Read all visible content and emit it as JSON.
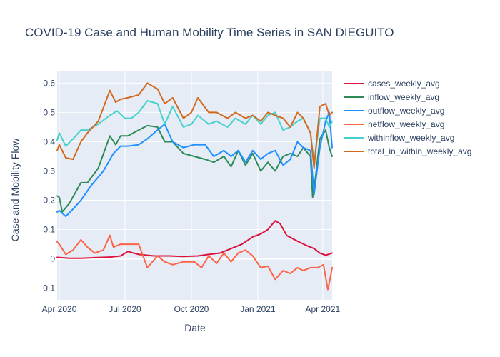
{
  "chart_data": {
    "type": "line",
    "title": "COVID-19 Case and Human Mobility Time Series in SAN DIEGUITO",
    "xlabel": "Date",
    "ylabel": "Case and Mobility Flow",
    "xlim": [
      "2020-03-29",
      "2021-04-14"
    ],
    "ylim": [
      -0.14,
      0.64
    ],
    "xticks": [
      {
        "date": "2020-04-01",
        "label": "Apr 2020"
      },
      {
        "date": "2020-07-01",
        "label": "Jul 2020"
      },
      {
        "date": "2020-10-01",
        "label": "Oct 2020"
      },
      {
        "date": "2021-01-01",
        "label": "Jan 2021"
      },
      {
        "date": "2021-04-01",
        "label": "Apr 2021"
      }
    ],
    "yticks": [
      -0.1,
      0,
      0.1,
      0.2,
      0.3,
      0.4,
      0.5,
      0.6
    ],
    "ytick_labels": [
      "−0.1",
      "0",
      "0.1",
      "0.2",
      "0.3",
      "0.4",
      "0.5",
      "0.6"
    ],
    "grid": true,
    "legend": "top-right, outside plot",
    "series": [
      {
        "name": "cases_weekly_avg",
        "color": "#dc143c",
        "x": [
          "2020-03-29",
          "2020-04-15",
          "2020-05-01",
          "2020-05-20",
          "2020-06-10",
          "2020-06-25",
          "2020-07-05",
          "2020-07-20",
          "2020-08-10",
          "2020-09-01",
          "2020-09-20",
          "2020-10-10",
          "2020-10-25",
          "2020-11-10",
          "2020-11-25",
          "2020-12-10",
          "2020-12-25",
          "2021-01-05",
          "2021-01-15",
          "2021-01-20",
          "2021-01-25",
          "2021-02-01",
          "2021-02-10",
          "2021-02-25",
          "2021-03-10",
          "2021-03-20",
          "2021-03-28",
          "2021-04-05",
          "2021-04-14"
        ],
        "y": [
          0.005,
          0.002,
          0.002,
          0.004,
          0.006,
          0.01,
          0.025,
          0.015,
          0.01,
          0.01,
          0.008,
          0.01,
          0.015,
          0.02,
          0.035,
          0.05,
          0.075,
          0.085,
          0.1,
          0.115,
          0.13,
          0.12,
          0.08,
          0.06,
          0.045,
          0.035,
          0.02,
          0.012,
          0.02
        ]
      },
      {
        "name": "inflow_weekly_avg",
        "color": "#2e8b57",
        "x": [
          "2020-03-29",
          "2020-04-01",
          "2020-04-05",
          "2020-04-15",
          "2020-05-01",
          "2020-05-10",
          "2020-05-25",
          "2020-06-10",
          "2020-06-18",
          "2020-06-25",
          "2020-07-05",
          "2020-07-20",
          "2020-08-01",
          "2020-08-15",
          "2020-08-25",
          "2020-09-05",
          "2020-09-20",
          "2020-10-05",
          "2020-10-20",
          "2020-11-01",
          "2020-11-15",
          "2020-11-25",
          "2020-12-05",
          "2020-12-15",
          "2020-12-25",
          "2021-01-05",
          "2021-01-15",
          "2021-01-25",
          "2021-02-05",
          "2021-02-15",
          "2021-02-25",
          "2021-03-05",
          "2021-03-15",
          "2021-03-18",
          "2021-03-22",
          "2021-03-28",
          "2021-04-05",
          "2021-04-10",
          "2021-04-14"
        ],
        "y": [
          0.215,
          0.21,
          0.16,
          0.19,
          0.26,
          0.26,
          0.31,
          0.42,
          0.39,
          0.42,
          0.42,
          0.44,
          0.455,
          0.45,
          0.4,
          0.4,
          0.36,
          0.35,
          0.34,
          0.33,
          0.35,
          0.315,
          0.37,
          0.32,
          0.36,
          0.3,
          0.33,
          0.3,
          0.35,
          0.36,
          0.35,
          0.38,
          0.35,
          0.21,
          0.28,
          0.41,
          0.44,
          0.38,
          0.35
        ]
      },
      {
        "name": "outflow_weekly_avg",
        "color": "#1e90ff",
        "x": [
          "2020-03-29",
          "2020-04-01",
          "2020-04-10",
          "2020-04-20",
          "2020-05-01",
          "2020-05-15",
          "2020-06-01",
          "2020-06-15",
          "2020-06-25",
          "2020-07-05",
          "2020-07-20",
          "2020-08-01",
          "2020-08-15",
          "2020-08-25",
          "2020-09-05",
          "2020-09-20",
          "2020-10-05",
          "2020-10-20",
          "2020-11-01",
          "2020-11-15",
          "2020-11-25",
          "2020-12-05",
          "2020-12-15",
          "2020-12-25",
          "2021-01-05",
          "2021-01-15",
          "2021-01-25",
          "2021-02-05",
          "2021-02-15",
          "2021-02-25",
          "2021-03-05",
          "2021-03-15",
          "2021-03-20",
          "2021-03-28",
          "2021-04-05",
          "2021-04-10",
          "2021-04-14"
        ],
        "y": [
          0.16,
          0.165,
          0.145,
          0.17,
          0.2,
          0.25,
          0.3,
          0.36,
          0.385,
          0.385,
          0.39,
          0.41,
          0.44,
          0.46,
          0.4,
          0.38,
          0.39,
          0.39,
          0.35,
          0.37,
          0.35,
          0.37,
          0.33,
          0.37,
          0.34,
          0.36,
          0.37,
          0.32,
          0.34,
          0.4,
          0.38,
          0.37,
          0.22,
          0.38,
          0.47,
          0.5,
          0.38
        ]
      },
      {
        "name": "netflow_weekly_avg",
        "color": "#ff6347",
        "x": [
          "2020-03-29",
          "2020-04-01",
          "2020-04-10",
          "2020-04-20",
          "2020-05-01",
          "2020-05-10",
          "2020-05-20",
          "2020-06-01",
          "2020-06-10",
          "2020-06-15",
          "2020-06-25",
          "2020-07-05",
          "2020-07-20",
          "2020-08-01",
          "2020-08-15",
          "2020-08-25",
          "2020-09-05",
          "2020-09-20",
          "2020-10-05",
          "2020-10-15",
          "2020-10-25",
          "2020-11-05",
          "2020-11-15",
          "2020-11-25",
          "2020-12-05",
          "2020-12-15",
          "2020-12-25",
          "2021-01-05",
          "2021-01-15",
          "2021-01-25",
          "2021-02-05",
          "2021-02-15",
          "2021-02-25",
          "2021-03-05",
          "2021-03-15",
          "2021-03-25",
          "2021-04-02",
          "2021-04-08",
          "2021-04-11",
          "2021-04-14"
        ],
        "y": [
          0.058,
          0.05,
          0.015,
          0.03,
          0.065,
          0.04,
          0.02,
          0.03,
          0.08,
          0.04,
          0.05,
          0.05,
          0.05,
          -0.03,
          0.01,
          -0.01,
          -0.02,
          -0.01,
          -0.01,
          -0.03,
          0.01,
          -0.015,
          0.02,
          -0.01,
          0.02,
          0.03,
          0.01,
          -0.03,
          -0.025,
          -0.07,
          -0.04,
          -0.05,
          -0.03,
          -0.04,
          -0.03,
          -0.03,
          -0.02,
          -0.105,
          -0.07,
          -0.03
        ]
      },
      {
        "name": "withinflow_weekly_avg",
        "color": "#48d1cc",
        "x": [
          "2020-03-29",
          "2020-04-01",
          "2020-04-10",
          "2020-04-20",
          "2020-05-01",
          "2020-05-10",
          "2020-05-25",
          "2020-06-10",
          "2020-06-20",
          "2020-07-01",
          "2020-07-10",
          "2020-07-20",
          "2020-08-01",
          "2020-08-15",
          "2020-08-25",
          "2020-09-05",
          "2020-09-20",
          "2020-10-01",
          "2020-10-10",
          "2020-10-25",
          "2020-11-05",
          "2020-11-20",
          "2020-12-01",
          "2020-12-15",
          "2020-12-25",
          "2021-01-05",
          "2021-01-15",
          "2021-01-25",
          "2021-02-05",
          "2021-02-15",
          "2021-02-25",
          "2021-03-05",
          "2021-03-15",
          "2021-03-20",
          "2021-03-28",
          "2021-04-05",
          "2021-04-10",
          "2021-04-14"
        ],
        "y": [
          0.405,
          0.43,
          0.385,
          0.41,
          0.44,
          0.44,
          0.46,
          0.49,
          0.505,
          0.48,
          0.48,
          0.5,
          0.54,
          0.53,
          0.46,
          0.52,
          0.45,
          0.46,
          0.49,
          0.46,
          0.47,
          0.45,
          0.48,
          0.46,
          0.49,
          0.46,
          0.49,
          0.5,
          0.44,
          0.45,
          0.47,
          0.48,
          0.43,
          0.33,
          0.48,
          0.48,
          0.45,
          0.47
        ]
      },
      {
        "name": "total_in_within_weekly_avg",
        "color": "#d2691e",
        "x": [
          "2020-03-29",
          "2020-04-01",
          "2020-04-10",
          "2020-04-20",
          "2020-05-01",
          "2020-05-10",
          "2020-05-25",
          "2020-06-10",
          "2020-06-18",
          "2020-06-25",
          "2020-07-05",
          "2020-07-20",
          "2020-08-01",
          "2020-08-15",
          "2020-08-25",
          "2020-09-05",
          "2020-09-20",
          "2020-10-01",
          "2020-10-10",
          "2020-10-25",
          "2020-11-05",
          "2020-11-20",
          "2020-12-01",
          "2020-12-15",
          "2020-12-25",
          "2021-01-05",
          "2021-01-15",
          "2021-01-25",
          "2021-02-05",
          "2021-02-15",
          "2021-02-25",
          "2021-03-05",
          "2021-03-15",
          "2021-03-20",
          "2021-03-28",
          "2021-04-05",
          "2021-04-10",
          "2021-04-14"
        ],
        "y": [
          0.37,
          0.39,
          0.345,
          0.34,
          0.4,
          0.43,
          0.47,
          0.575,
          0.535,
          0.545,
          0.55,
          0.56,
          0.6,
          0.58,
          0.53,
          0.55,
          0.48,
          0.5,
          0.55,
          0.5,
          0.5,
          0.48,
          0.5,
          0.48,
          0.49,
          0.47,
          0.5,
          0.49,
          0.48,
          0.45,
          0.5,
          0.48,
          0.43,
          0.31,
          0.52,
          0.53,
          0.49,
          0.5
        ]
      }
    ]
  }
}
